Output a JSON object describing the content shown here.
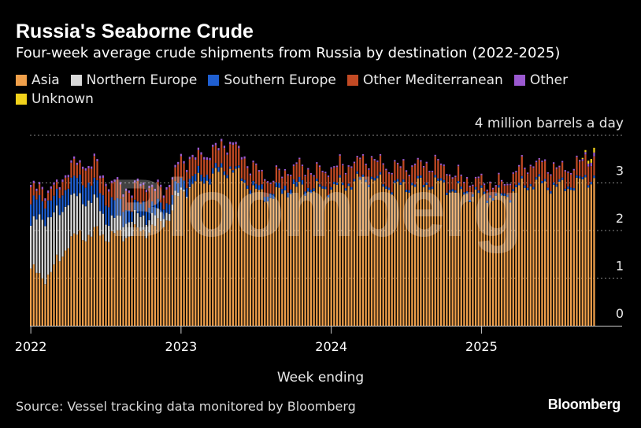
{
  "title": "Russia's Seaborne Crude",
  "subtitle": "Four-week average crude shipments from Russia by destination (2022-2025)",
  "unit_label": "4 million barrels a day",
  "xlabel": "Week ending",
  "source": "Source: Vessel tracking data monitored by Bloomberg",
  "brand": "Bloomberg",
  "watermark": "Bloomberg",
  "chart_data": {
    "type": "bar",
    "stacked": true,
    "title": "Russia's Seaborne Crude",
    "subtitle": "Four-week average crude shipments from Russia by destination (2022-2025)",
    "xlabel": "Week ending",
    "ylabel": "4 million barrels a day",
    "ylim": [
      0,
      4
    ],
    "yticks": [
      0,
      1,
      2,
      3
    ],
    "xlim": [
      2022.0,
      2025.95
    ],
    "xticks": [
      {
        "value": 2022,
        "label": "2022"
      },
      {
        "value": 2023,
        "label": "2023"
      },
      {
        "value": 2024,
        "label": "2024"
      },
      {
        "value": 2025,
        "label": "2025"
      }
    ],
    "grid": true,
    "legend_position": "top-left",
    "series": [
      {
        "name": "Asia",
        "color": "#f0a04b"
      },
      {
        "name": "Northern Europe",
        "color": "#d9d9d9"
      },
      {
        "name": "Southern Europe",
        "color": "#1f5fd1"
      },
      {
        "name": "Other Mediterranean",
        "color": "#c24a24"
      },
      {
        "name": "Other",
        "color": "#9b59d0"
      },
      {
        "name": "Unknown",
        "color": "#f2d21b"
      }
    ],
    "keyframes": {
      "columns": [
        "year",
        "Asia",
        "Northern Europe",
        "Southern Europe",
        "Other Mediterranean",
        "Other",
        "Unknown"
      ],
      "rows": [
        [
          2022.0,
          1.2,
          0.9,
          0.45,
          0.3,
          0.05,
          0
        ],
        [
          2022.06,
          1.0,
          1.25,
          0.4,
          0.2,
          0.05,
          0
        ],
        [
          2022.12,
          1.1,
          1.2,
          0.35,
          0.2,
          0.05,
          0
        ],
        [
          2022.2,
          1.4,
          0.95,
          0.35,
          0.2,
          0.05,
          0
        ],
        [
          2022.25,
          1.8,
          0.9,
          0.35,
          0.3,
          0.05,
          0
        ],
        [
          2022.35,
          1.9,
          0.75,
          0.4,
          0.3,
          0.05,
          0
        ],
        [
          2022.42,
          1.95,
          0.7,
          0.35,
          0.4,
          0.05,
          0
        ],
        [
          2022.5,
          1.9,
          0.35,
          0.4,
          0.35,
          0.05,
          0
        ],
        [
          2022.6,
          1.9,
          0.3,
          0.35,
          0.35,
          0.05,
          0
        ],
        [
          2022.68,
          1.95,
          0.3,
          0.2,
          0.35,
          0.05,
          0
        ],
        [
          2022.75,
          2.0,
          0.3,
          0.3,
          0.4,
          0.05,
          0
        ],
        [
          2022.85,
          2.1,
          0.2,
          0.2,
          0.3,
          0.05,
          0
        ],
        [
          2022.92,
          2.3,
          0.15,
          0.2,
          0.3,
          0.05,
          0
        ],
        [
          2023.0,
          2.8,
          0.05,
          0.2,
          0.4,
          0.05,
          0
        ],
        [
          2023.1,
          3.0,
          0,
          0.15,
          0.35,
          0.05,
          0
        ],
        [
          2023.25,
          3.2,
          0,
          0.1,
          0.4,
          0.05,
          0
        ],
        [
          2023.33,
          3.3,
          0,
          0.05,
          0.5,
          0.05,
          0
        ],
        [
          2023.4,
          3.1,
          0,
          0.05,
          0.4,
          0.05,
          0
        ],
        [
          2023.5,
          2.8,
          0,
          0.1,
          0.35,
          0.03,
          0
        ],
        [
          2023.6,
          2.7,
          0,
          0.1,
          0.25,
          0.03,
          0
        ],
        [
          2023.7,
          2.85,
          0,
          0.1,
          0.3,
          0.03,
          0
        ],
        [
          2023.8,
          2.9,
          0,
          0.1,
          0.35,
          0.03,
          0
        ],
        [
          2023.9,
          2.85,
          0,
          0.05,
          0.3,
          0.03,
          0
        ],
        [
          2024.0,
          2.9,
          0,
          0.05,
          0.35,
          0.03,
          0
        ],
        [
          2024.15,
          3.0,
          0,
          0.05,
          0.35,
          0.03,
          0
        ],
        [
          2024.25,
          3.1,
          0,
          0.05,
          0.35,
          0.03,
          0
        ],
        [
          2024.4,
          2.9,
          0,
          0.05,
          0.35,
          0.03,
          0
        ],
        [
          2024.55,
          2.95,
          0,
          0.05,
          0.35,
          0.03,
          0
        ],
        [
          2024.7,
          3.0,
          0,
          0.05,
          0.35,
          0.03,
          0
        ],
        [
          2024.85,
          2.8,
          0,
          0.05,
          0.25,
          0.03,
          0
        ],
        [
          2025.0,
          2.75,
          0,
          0.05,
          0.2,
          0.03,
          0
        ],
        [
          2025.15,
          2.7,
          0,
          0.05,
          0.2,
          0.03,
          0
        ],
        [
          2025.25,
          2.9,
          0,
          0.05,
          0.35,
          0.03,
          0
        ],
        [
          2025.35,
          3.0,
          0,
          0.05,
          0.35,
          0.03,
          0
        ],
        [
          2025.45,
          2.95,
          0,
          0.05,
          0.35,
          0.03,
          0
        ],
        [
          2025.55,
          2.9,
          0,
          0.05,
          0.3,
          0.03,
          0
        ],
        [
          2025.65,
          3.0,
          0,
          0.05,
          0.35,
          0.03,
          0
        ],
        [
          2025.75,
          3.1,
          0,
          0.05,
          0.4,
          0.08,
          0.1
        ]
      ]
    }
  }
}
